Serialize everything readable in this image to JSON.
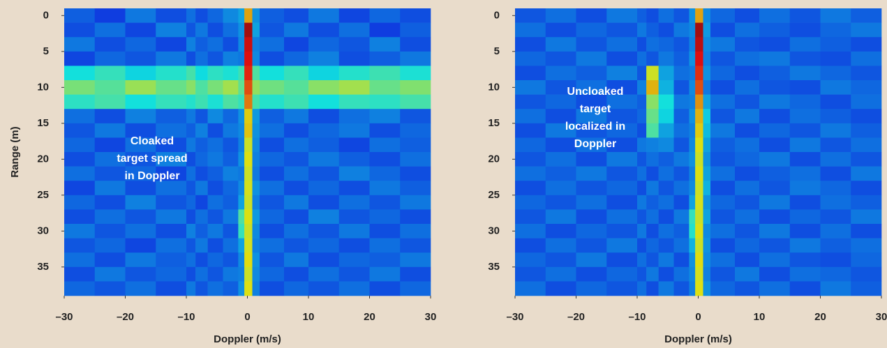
{
  "chart_data": [
    {
      "type": "heatmap",
      "colormap": "jet",
      "xlabel": "Doppler (m/s)",
      "ylabel": "Range (m)",
      "annotation": [
        "Cloaked",
        "target spread",
        "in Doppler"
      ],
      "xlim": [
        -30,
        30
      ],
      "ylim": [
        -1,
        39
      ],
      "y_inverted": true,
      "xticks": [
        {
          "value": -30,
          "label": "–30"
        },
        {
          "value": -20,
          "label": "–20"
        },
        {
          "value": -10,
          "label": "–10"
        },
        0,
        10,
        20,
        30
      ],
      "yticks": [
        0,
        5,
        10,
        15,
        20,
        25,
        30,
        35
      ],
      "x_edges": [
        -30,
        -25,
        -20,
        -15,
        -10,
        -8.5,
        -6.5,
        -4,
        -1.5,
        -0.5,
        0.8,
        2,
        6,
        10,
        15,
        20,
        25,
        30
      ],
      "y_edges": [
        -1,
        1,
        3,
        5,
        7,
        9,
        11,
        13,
        15,
        17,
        19,
        21,
        23,
        25,
        27,
        29,
        31,
        33,
        35,
        37,
        39
      ],
      "z": [
        [
          0.22,
          0.18,
          0.25,
          0.2,
          0.24,
          0.2,
          0.23,
          0.27,
          0.3,
          0.7,
          0.28,
          0.22,
          0.2,
          0.25,
          0.19,
          0.23,
          0.2
        ],
        [
          0.2,
          0.24,
          0.19,
          0.26,
          0.21,
          0.25,
          0.2,
          0.24,
          0.28,
          0.95,
          0.3,
          0.21,
          0.25,
          0.2,
          0.24,
          0.18,
          0.22
        ],
        [
          0.25,
          0.2,
          0.23,
          0.19,
          0.26,
          0.22,
          0.24,
          0.2,
          0.27,
          0.9,
          0.26,
          0.24,
          0.19,
          0.23,
          0.21,
          0.26,
          0.2
        ],
        [
          0.19,
          0.23,
          0.21,
          0.25,
          0.2,
          0.24,
          0.21,
          0.26,
          0.25,
          0.88,
          0.27,
          0.2,
          0.23,
          0.26,
          0.2,
          0.22,
          0.25
        ],
        [
          0.38,
          0.42,
          0.36,
          0.4,
          0.44,
          0.37,
          0.41,
          0.39,
          0.43,
          0.85,
          0.45,
          0.38,
          0.42,
          0.36,
          0.4,
          0.43,
          0.39
        ],
        [
          0.5,
          0.46,
          0.54,
          0.48,
          0.52,
          0.45,
          0.5,
          0.55,
          0.47,
          0.8,
          0.53,
          0.49,
          0.46,
          0.52,
          0.55,
          0.48,
          0.51
        ],
        [
          0.41,
          0.44,
          0.38,
          0.42,
          0.4,
          0.43,
          0.39,
          0.45,
          0.42,
          0.75,
          0.44,
          0.4,
          0.43,
          0.38,
          0.42,
          0.41,
          0.44
        ],
        [
          0.24,
          0.2,
          0.26,
          0.22,
          0.25,
          0.21,
          0.27,
          0.23,
          0.28,
          0.65,
          0.29,
          0.22,
          0.25,
          0.2,
          0.24,
          0.26,
          0.21
        ],
        [
          0.21,
          0.25,
          0.2,
          0.24,
          0.22,
          0.26,
          0.2,
          0.25,
          0.27,
          0.66,
          0.28,
          0.24,
          0.2,
          0.23,
          0.25,
          0.2,
          0.23
        ],
        [
          0.23,
          0.19,
          0.24,
          0.2,
          0.25,
          0.22,
          0.24,
          0.21,
          0.26,
          0.6,
          0.27,
          0.2,
          0.24,
          0.22,
          0.19,
          0.24,
          0.22
        ],
        [
          0.2,
          0.24,
          0.21,
          0.26,
          0.2,
          0.23,
          0.25,
          0.22,
          0.28,
          0.62,
          0.26,
          0.23,
          0.21,
          0.25,
          0.22,
          0.2,
          0.24
        ],
        [
          0.24,
          0.21,
          0.23,
          0.19,
          0.24,
          0.2,
          0.22,
          0.26,
          0.25,
          0.6,
          0.25,
          0.2,
          0.24,
          0.21,
          0.26,
          0.23,
          0.2
        ],
        [
          0.19,
          0.25,
          0.2,
          0.24,
          0.21,
          0.25,
          0.2,
          0.23,
          0.27,
          0.61,
          0.28,
          0.24,
          0.2,
          0.23,
          0.2,
          0.25,
          0.22
        ],
        [
          0.23,
          0.2,
          0.26,
          0.21,
          0.23,
          0.19,
          0.24,
          0.22,
          0.3,
          0.6,
          0.26,
          0.21,
          0.25,
          0.2,
          0.24,
          0.21,
          0.25
        ],
        [
          0.2,
          0.24,
          0.21,
          0.25,
          0.2,
          0.24,
          0.21,
          0.25,
          0.45,
          0.62,
          0.29,
          0.23,
          0.2,
          0.26,
          0.21,
          0.23,
          0.2
        ],
        [
          0.25,
          0.21,
          0.24,
          0.2,
          0.26,
          0.22,
          0.25,
          0.21,
          0.42,
          0.6,
          0.27,
          0.2,
          0.24,
          0.21,
          0.25,
          0.2,
          0.24
        ],
        [
          0.21,
          0.23,
          0.19,
          0.24,
          0.21,
          0.25,
          0.2,
          0.24,
          0.3,
          0.61,
          0.26,
          0.24,
          0.21,
          0.23,
          0.2,
          0.24,
          0.21
        ],
        [
          0.24,
          0.2,
          0.25,
          0.22,
          0.24,
          0.2,
          0.23,
          0.21,
          0.27,
          0.63,
          0.28,
          0.21,
          0.25,
          0.2,
          0.23,
          0.22,
          0.25
        ],
        [
          0.2,
          0.25,
          0.21,
          0.23,
          0.2,
          0.24,
          0.21,
          0.25,
          0.26,
          0.6,
          0.27,
          0.23,
          0.2,
          0.24,
          0.21,
          0.25,
          0.2
        ],
        [
          0.23,
          0.21,
          0.24,
          0.2,
          0.25,
          0.21,
          0.24,
          0.22,
          0.28,
          0.62,
          0.26,
          0.2,
          0.23,
          0.21,
          0.24,
          0.2,
          0.23
        ]
      ]
    },
    {
      "type": "heatmap",
      "colormap": "jet",
      "xlabel": "Doppler (m/s)",
      "annotation": [
        "Uncloaked",
        "target",
        "localized in",
        "Doppler"
      ],
      "xlim": [
        -30,
        30
      ],
      "ylim": [
        -1,
        39
      ],
      "y_inverted": true,
      "xticks": [
        {
          "value": -30,
          "label": "–30"
        },
        {
          "value": -20,
          "label": "–20"
        },
        {
          "value": -10,
          "label": "–10"
        },
        0,
        10,
        20,
        30
      ],
      "yticks": [
        0,
        5,
        10,
        15,
        20,
        25,
        30,
        35
      ],
      "x_edges": [
        -30,
        -25,
        -20,
        -15,
        -10,
        -8.5,
        -6.5,
        -4,
        -1.5,
        -0.5,
        0.8,
        2,
        6,
        10,
        15,
        20,
        25,
        30
      ],
      "y_edges": [
        -1,
        1,
        3,
        5,
        7,
        9,
        11,
        13,
        15,
        17,
        19,
        21,
        23,
        25,
        27,
        29,
        31,
        33,
        35,
        37,
        39
      ],
      "z": [
        [
          0.21,
          0.24,
          0.2,
          0.25,
          0.22,
          0.2,
          0.24,
          0.21,
          0.28,
          0.7,
          0.27,
          0.23,
          0.2,
          0.24,
          0.21,
          0.25,
          0.22
        ],
        [
          0.24,
          0.2,
          0.23,
          0.21,
          0.25,
          0.22,
          0.2,
          0.25,
          0.27,
          0.95,
          0.29,
          0.2,
          0.24,
          0.22,
          0.2,
          0.23,
          0.25
        ],
        [
          0.2,
          0.25,
          0.21,
          0.24,
          0.2,
          0.24,
          0.23,
          0.21,
          0.26,
          0.92,
          0.27,
          0.25,
          0.21,
          0.2,
          0.24,
          0.22,
          0.2
        ],
        [
          0.23,
          0.21,
          0.25,
          0.2,
          0.24,
          0.21,
          0.25,
          0.22,
          0.28,
          0.88,
          0.26,
          0.21,
          0.24,
          0.25,
          0.21,
          0.2,
          0.24
        ],
        [
          0.2,
          0.24,
          0.22,
          0.26,
          0.21,
          0.6,
          0.3,
          0.24,
          0.25,
          0.84,
          0.28,
          0.23,
          0.2,
          0.22,
          0.25,
          0.23,
          0.21
        ],
        [
          0.25,
          0.21,
          0.24,
          0.2,
          0.26,
          0.68,
          0.32,
          0.21,
          0.27,
          0.8,
          0.25,
          0.2,
          0.24,
          0.21,
          0.2,
          0.25,
          0.23
        ],
        [
          0.21,
          0.23,
          0.2,
          0.24,
          0.22,
          0.52,
          0.38,
          0.25,
          0.26,
          0.72,
          0.3,
          0.24,
          0.21,
          0.25,
          0.23,
          0.2,
          0.24
        ],
        [
          0.24,
          0.2,
          0.25,
          0.21,
          0.23,
          0.48,
          0.36,
          0.22,
          0.28,
          0.68,
          0.35,
          0.21,
          0.25,
          0.2,
          0.24,
          0.22,
          0.2
        ],
        [
          0.2,
          0.25,
          0.21,
          0.23,
          0.2,
          0.45,
          0.3,
          0.24,
          0.26,
          0.65,
          0.33,
          0.25,
          0.2,
          0.23,
          0.21,
          0.25,
          0.22
        ],
        [
          0.23,
          0.2,
          0.24,
          0.2,
          0.25,
          0.26,
          0.27,
          0.21,
          0.27,
          0.62,
          0.3,
          0.22,
          0.24,
          0.2,
          0.25,
          0.21,
          0.24
        ],
        [
          0.21,
          0.24,
          0.2,
          0.25,
          0.21,
          0.24,
          0.22,
          0.25,
          0.28,
          0.6,
          0.28,
          0.21,
          0.23,
          0.25,
          0.2,
          0.24,
          0.21
        ],
        [
          0.24,
          0.22,
          0.25,
          0.21,
          0.24,
          0.2,
          0.24,
          0.21,
          0.26,
          0.62,
          0.3,
          0.24,
          0.2,
          0.22,
          0.24,
          0.2,
          0.25
        ],
        [
          0.2,
          0.24,
          0.21,
          0.23,
          0.2,
          0.25,
          0.21,
          0.24,
          0.27,
          0.6,
          0.32,
          0.2,
          0.24,
          0.21,
          0.25,
          0.23,
          0.2
        ],
        [
          0.23,
          0.21,
          0.24,
          0.2,
          0.25,
          0.22,
          0.24,
          0.2,
          0.3,
          0.61,
          0.28,
          0.23,
          0.21,
          0.25,
          0.2,
          0.24,
          0.22
        ],
        [
          0.21,
          0.25,
          0.2,
          0.24,
          0.21,
          0.24,
          0.2,
          0.25,
          0.42,
          0.6,
          0.3,
          0.21,
          0.24,
          0.2,
          0.23,
          0.21,
          0.25
        ],
        [
          0.24,
          0.2,
          0.23,
          0.21,
          0.25,
          0.2,
          0.24,
          0.22,
          0.4,
          0.62,
          0.27,
          0.24,
          0.21,
          0.25,
          0.2,
          0.24,
          0.2
        ],
        [
          0.2,
          0.24,
          0.21,
          0.25,
          0.2,
          0.23,
          0.21,
          0.24,
          0.32,
          0.6,
          0.28,
          0.2,
          0.23,
          0.21,
          0.25,
          0.22,
          0.24
        ],
        [
          0.23,
          0.21,
          0.25,
          0.2,
          0.24,
          0.21,
          0.25,
          0.2,
          0.28,
          0.63,
          0.27,
          0.24,
          0.2,
          0.24,
          0.21,
          0.2,
          0.23
        ],
        [
          0.21,
          0.24,
          0.2,
          0.23,
          0.21,
          0.25,
          0.2,
          0.24,
          0.27,
          0.61,
          0.26,
          0.21,
          0.25,
          0.2,
          0.24,
          0.23,
          0.21
        ],
        [
          0.24,
          0.2,
          0.23,
          0.21,
          0.24,
          0.2,
          0.25,
          0.21,
          0.26,
          0.62,
          0.28,
          0.23,
          0.21,
          0.24,
          0.2,
          0.25,
          0.22
        ]
      ]
    }
  ]
}
